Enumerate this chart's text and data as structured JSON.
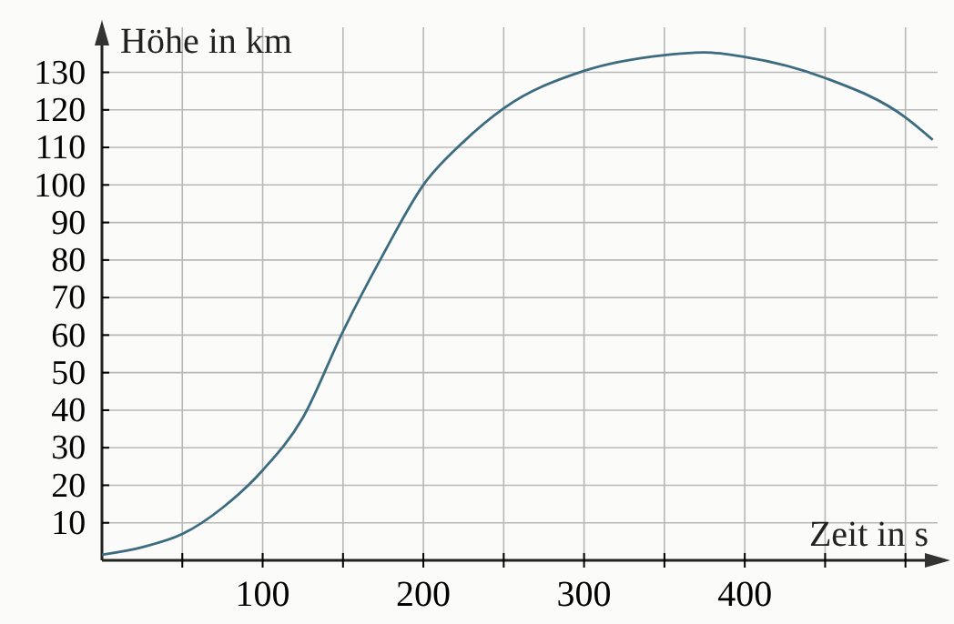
{
  "chart_data": {
    "type": "line",
    "xlabel": "Zeit in s",
    "ylabel": "Höhe in km",
    "xlim": [
      0,
      520
    ],
    "ylim": [
      0,
      142
    ],
    "xticks": [
      {
        "value": 50,
        "label": null
      },
      100,
      {
        "value": 150,
        "label": null
      },
      200,
      {
        "value": 250,
        "label": null
      },
      300,
      {
        "value": 350,
        "label": null
      },
      400,
      {
        "value": 450,
        "label": null
      },
      {
        "value": 500,
        "label": null
      }
    ],
    "yticks": [
      10,
      20,
      30,
      40,
      50,
      60,
      70,
      80,
      90,
      100,
      110,
      120,
      130
    ],
    "grid": true,
    "marker": "none",
    "line_style": "solid",
    "series": [
      {
        "color": "#3d6b80",
        "x": [
          0,
          25,
          50,
          75,
          100,
          125,
          150,
          175,
          200,
          225,
          250,
          300,
          350,
          375,
          400,
          450,
          500,
          517
        ],
        "values": [
          1.5,
          3.5,
          7,
          14,
          24,
          38,
          61,
          81.5,
          100,
          111.5,
          120.4,
          130.4,
          134.6,
          135.3,
          134.1,
          128.5,
          118,
          112
        ]
      }
    ]
  }
}
